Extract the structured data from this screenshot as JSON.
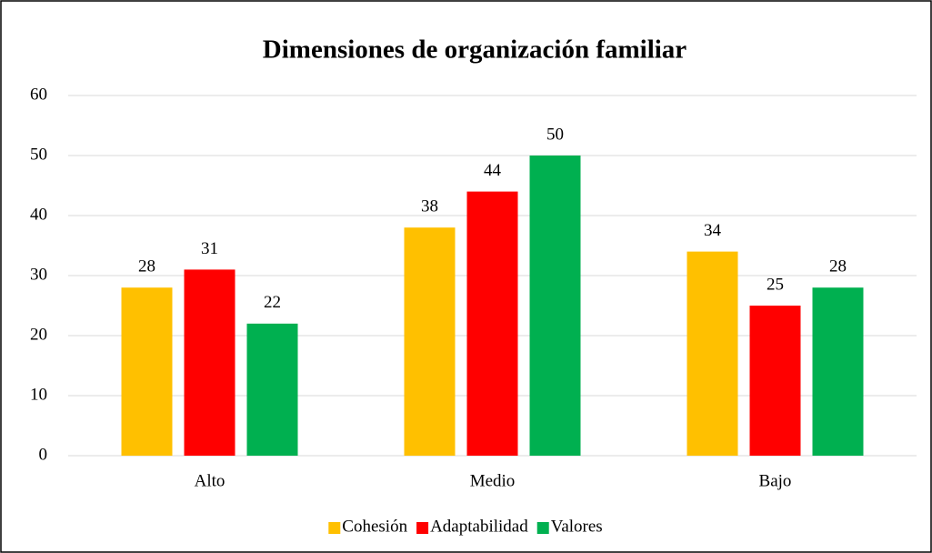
{
  "chart_data": {
    "type": "bar",
    "title": "Dimensiones de organización familiar",
    "categories": [
      "Alto",
      "Medio",
      "Bajo"
    ],
    "series": [
      {
        "name": "Cohesión",
        "color": "#ffc000",
        "values": [
          28,
          38,
          34
        ]
      },
      {
        "name": "Adaptabilidad",
        "color": "#ff0000",
        "values": [
          31,
          44,
          25
        ]
      },
      {
        "name": "Valores",
        "color": "#00b050",
        "values": [
          22,
          50,
          28
        ]
      }
    ],
    "ylim": [
      0,
      60
    ],
    "yticks": [
      0,
      10,
      20,
      30,
      40,
      50,
      60
    ],
    "grid": true,
    "legend": "bottom"
  }
}
